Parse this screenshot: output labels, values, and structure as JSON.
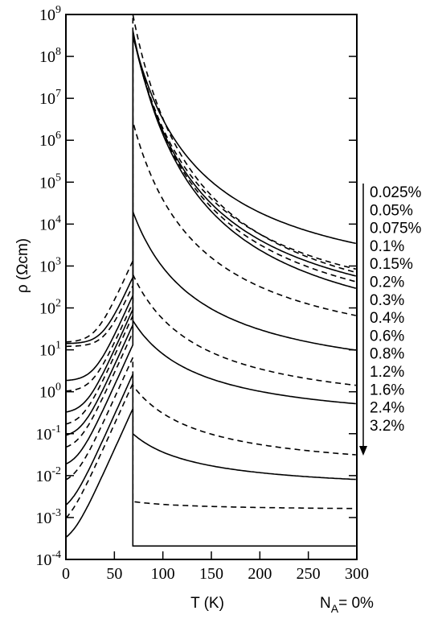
{
  "chart_data": {
    "type": "line",
    "xlabel": "T (K)",
    "ylabel": "ρ (Ωcm)",
    "xlim": [
      0,
      300
    ],
    "ylim_log10": [
      -4,
      9
    ],
    "y_scale": "log",
    "x_ticks": [
      0,
      50,
      100,
      150,
      200,
      250,
      300
    ],
    "y_tick_exponents": [
      -4,
      -3,
      -2,
      -1,
      0,
      1,
      2,
      3,
      4,
      5,
      6,
      7,
      8,
      9
    ],
    "y_tick_base": "10",
    "grid": false,
    "annotation_bottom": {
      "prefix": "N",
      "subscript": "A",
      "suffix": "= 0%"
    },
    "legend_arrow": "down",
    "series": [
      {
        "name": "0.025%",
        "dash": true,
        "a": 15.0,
        "b": 1.0,
        "c": 8.55,
        "d": 1.7
      },
      {
        "name": "0.05%",
        "dash": false,
        "a": 14.0,
        "b": 0.4,
        "c": 8.55,
        "d": 1.75
      },
      {
        "name": "0.075%",
        "dash": true,
        "a": 12.0,
        "b": 0.25,
        "c": 8.58,
        "d": 1.8
      },
      {
        "name": "0.1%",
        "dash": false,
        "a": 1.8,
        "b": 0.15,
        "c": 8.62,
        "d": 1.86
      },
      {
        "name": "0.15%",
        "dash": true,
        "a": 1.0,
        "b": 0.1,
        "c": 9.0,
        "d": 1.86
      },
      {
        "name": "0.2%",
        "dash": false,
        "a": 0.3,
        "b": 0.07,
        "c": 8.5,
        "d": 1.5
      },
      {
        "name": "0.3%",
        "dash": true,
        "a": 0.15,
        "b": 0.05,
        "c": 6.45,
        "d": 1.4
      },
      {
        "name": "0.4%",
        "dash": false,
        "a": 0.08,
        "b": 0.03,
        "c": 4.3,
        "d": 1.0
      },
      {
        "name": "0.6%",
        "dash": true,
        "a": 0.04,
        "b": 0.02,
        "c": 2.8,
        "d": 0.8
      },
      {
        "name": "0.8%",
        "dash": false,
        "a": 0.015,
        "b": 0.01,
        "c": 1.7,
        "d": 0.6
      },
      {
        "name": "1.2%",
        "dash": true,
        "a": 0.006,
        "b": 0.005,
        "c": 0.15,
        "d": 0.5
      },
      {
        "name": "1.6%",
        "dash": false,
        "a": 0.0012,
        "b": 0.002,
        "c": -1.0,
        "d": 0.33
      },
      {
        "name": "2.4%",
        "dash": true,
        "a": 0.0005,
        "b": 0.0012,
        "c": -2.62,
        "d": 0.05
      },
      {
        "name": "3.2%",
        "dash": false,
        "a": 0.00022,
        "b": 0.0003,
        "c": -3.68,
        "d": 0.0
      }
    ]
  }
}
